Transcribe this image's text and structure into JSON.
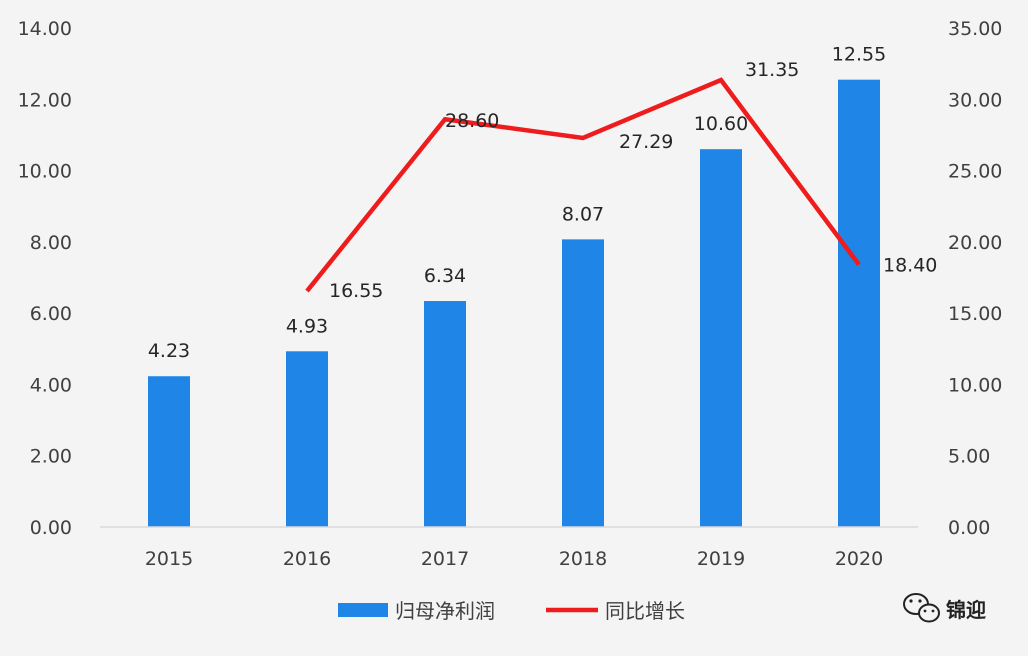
{
  "chart_data": {
    "type": "bar",
    "categories": [
      "2015",
      "2016",
      "2017",
      "2018",
      "2019",
      "2020"
    ],
    "series": [
      {
        "name": "归母净利润",
        "type": "bar",
        "axis": "left",
        "color": "#1f86e8",
        "values": [
          4.23,
          4.93,
          6.34,
          8.07,
          10.6,
          12.55
        ],
        "labels": [
          "4.23",
          "4.93",
          "6.34",
          "8.07",
          "10.60",
          "12.55"
        ]
      },
      {
        "name": "同比增长",
        "type": "line",
        "axis": "right",
        "color": "#ee1c1c",
        "values": [
          null,
          16.55,
          28.6,
          27.29,
          31.35,
          18.4
        ],
        "labels": [
          "",
          "16.55",
          "28.60",
          "27.29",
          "31.35",
          "18.40"
        ]
      }
    ],
    "y_left": {
      "range": [
        0,
        14
      ],
      "ticks": [
        "0.00",
        "2.00",
        "4.00",
        "6.00",
        "8.00",
        "10.00",
        "12.00",
        "14.00"
      ]
    },
    "y_right": {
      "range": [
        0,
        35
      ],
      "ticks": [
        "0.00",
        "5.00",
        "10.00",
        "15.00",
        "20.00",
        "25.00",
        "30.00",
        "35.00"
      ]
    },
    "grid": false,
    "legend": "bottom",
    "title": "",
    "xlabel": "",
    "ylabel": ""
  },
  "watermark": {
    "text": "锦迎",
    "icon": "wechat-icon"
  }
}
